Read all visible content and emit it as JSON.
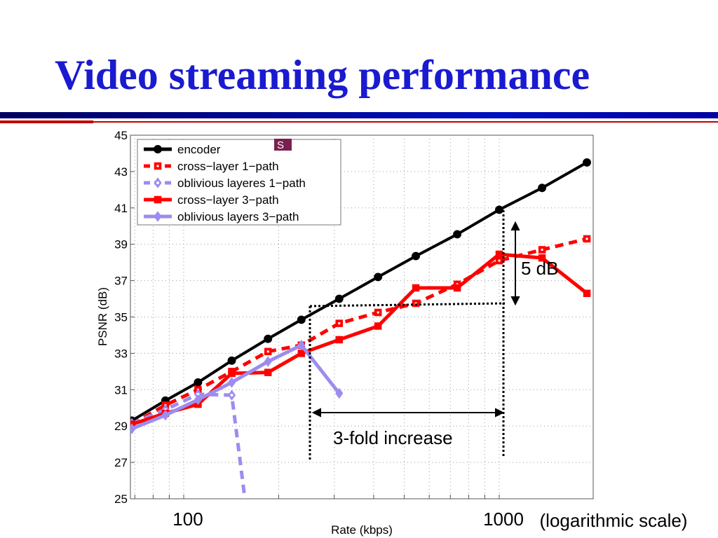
{
  "slide": {
    "title": "Video streaming performance"
  },
  "chart_data": {
    "type": "line",
    "title": "",
    "xlabel": "Rate (kbps)",
    "ylabel": "PSNR (dB)",
    "xscale": "log",
    "xscale_note": "(logarithmic scale)",
    "xlim": [
      68,
      2000
    ],
    "ylim": [
      25,
      45
    ],
    "yticks": [
      25,
      27,
      29,
      31,
      33,
      35,
      37,
      39,
      41,
      43,
      45
    ],
    "xticks": [
      100,
      1000
    ],
    "xtick_labels": [
      "100",
      "1000"
    ],
    "grid": true,
    "legend_placement": "top-left",
    "series": [
      {
        "name": "encoder",
        "color": "#000000",
        "style": "solid",
        "marker": "circle",
        "x": [
          68.5,
          87.5,
          111,
          142,
          185,
          236,
          311,
          413,
          544,
          736,
          1000,
          1367,
          1896
        ],
        "y": [
          29.3,
          30.4,
          31.4,
          32.6,
          33.8,
          34.85,
          36.0,
          37.2,
          38.35,
          39.55,
          40.9,
          42.1,
          43.5
        ]
      },
      {
        "name": "cross−layer 1−path",
        "color": "#ff0000",
        "style": "dashed",
        "marker": "square-open",
        "x": [
          68.5,
          87.5,
          111,
          142,
          185,
          236,
          311,
          413,
          544,
          736,
          1000,
          1367,
          1896
        ],
        "y": [
          29.1,
          30.15,
          31.0,
          32.0,
          33.1,
          33.45,
          34.65,
          35.25,
          35.75,
          36.8,
          38.1,
          38.7,
          39.3
        ]
      },
      {
        "name": "oblivious layeres 1−path",
        "color": "#9c8cf0",
        "style": "dashed",
        "marker": "diamond-open",
        "x": [
          68.5,
          87.5,
          111,
          142,
          170
        ],
        "y": [
          29.15,
          29.9,
          30.75,
          30.7,
          20
        ]
      },
      {
        "name": "cross−layer 3−path",
        "color": "#ff0000",
        "style": "solid",
        "marker": "square",
        "x": [
          68.5,
          87.5,
          111,
          142,
          185,
          236,
          311,
          413,
          544,
          736,
          1000,
          1367,
          1896
        ],
        "y": [
          29.1,
          29.7,
          30.2,
          31.9,
          31.95,
          33.0,
          33.75,
          34.5,
          36.6,
          36.6,
          38.45,
          38.25,
          36.3
        ]
      },
      {
        "name": "oblivious layers 3−path",
        "color": "#9c8cf0",
        "style": "solid",
        "marker": "diamond",
        "x": [
          68.5,
          87.5,
          111,
          142,
          185,
          236,
          311
        ],
        "y": [
          28.85,
          29.6,
          30.45,
          31.4,
          32.55,
          33.45,
          30.8
        ]
      }
    ],
    "annotations": {
      "gain": "5 dB",
      "rate_gain": "3-fold increase"
    },
    "legend_badge": "S"
  }
}
